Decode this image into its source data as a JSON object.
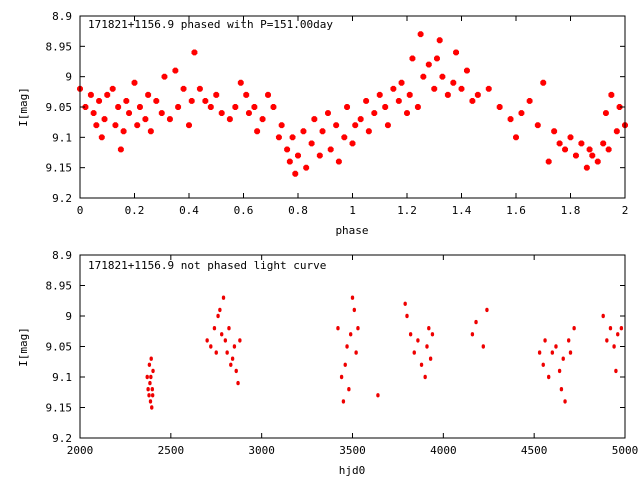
{
  "chart_data": [
    {
      "type": "scatter",
      "title": "171821+1156.9 phased with P=151.00day",
      "xlabel": "phase",
      "ylabel": "I[mag]",
      "xlim": [
        0,
        2
      ],
      "ylim": [
        8.9,
        9.2
      ],
      "y_inverted": true,
      "grid": false,
      "x_ticks": [
        "0",
        "0.2",
        "0.4",
        "0.6",
        "0.8",
        "1",
        "1.2",
        "1.4",
        "1.6",
        "1.8",
        "2"
      ],
      "x_tick_values": [
        0,
        0.2,
        0.4,
        0.6,
        0.8,
        1,
        1.2,
        1.4,
        1.6,
        1.8,
        2
      ],
      "y_ticks": [
        "8.9",
        "8.95",
        "9",
        "9.05",
        "9.1",
        "9.15",
        "9.2"
      ],
      "y_tick_values": [
        8.9,
        8.95,
        9.0,
        9.05,
        9.1,
        9.15,
        9.2
      ],
      "marker_color": "#ff0000",
      "points": [
        [
          0.0,
          9.02
        ],
        [
          0.02,
          9.05
        ],
        [
          0.04,
          9.03
        ],
        [
          0.05,
          9.06
        ],
        [
          0.06,
          9.08
        ],
        [
          0.07,
          9.04
        ],
        [
          0.08,
          9.1
        ],
        [
          0.09,
          9.07
        ],
        [
          0.1,
          9.03
        ],
        [
          0.12,
          9.02
        ],
        [
          0.13,
          9.08
        ],
        [
          0.14,
          9.05
        ],
        [
          0.15,
          9.12
        ],
        [
          0.16,
          9.09
        ],
        [
          0.17,
          9.04
        ],
        [
          0.18,
          9.06
        ],
        [
          0.2,
          9.01
        ],
        [
          0.21,
          9.08
        ],
        [
          0.22,
          9.05
        ],
        [
          0.24,
          9.07
        ],
        [
          0.25,
          9.03
        ],
        [
          0.26,
          9.09
        ],
        [
          0.28,
          9.04
        ],
        [
          0.3,
          9.06
        ],
        [
          0.31,
          9.0
        ],
        [
          0.33,
          9.07
        ],
        [
          0.35,
          8.99
        ],
        [
          0.36,
          9.05
        ],
        [
          0.38,
          9.02
        ],
        [
          0.4,
          9.08
        ],
        [
          0.41,
          9.04
        ],
        [
          0.42,
          8.96
        ],
        [
          0.44,
          9.02
        ],
        [
          0.46,
          9.04
        ],
        [
          0.48,
          9.05
        ],
        [
          0.5,
          9.03
        ],
        [
          0.52,
          9.06
        ],
        [
          0.55,
          9.07
        ],
        [
          0.57,
          9.05
        ],
        [
          0.59,
          9.01
        ],
        [
          0.61,
          9.03
        ],
        [
          0.62,
          9.06
        ],
        [
          0.64,
          9.05
        ],
        [
          0.65,
          9.09
        ],
        [
          0.67,
          9.07
        ],
        [
          0.69,
          9.03
        ],
        [
          0.71,
          9.05
        ],
        [
          0.73,
          9.1
        ],
        [
          0.74,
          9.08
        ],
        [
          0.76,
          9.12
        ],
        [
          0.77,
          9.14
        ],
        [
          0.78,
          9.1
        ],
        [
          0.79,
          9.16
        ],
        [
          0.8,
          9.13
        ],
        [
          0.82,
          9.09
        ],
        [
          0.83,
          9.15
        ],
        [
          0.85,
          9.11
        ],
        [
          0.86,
          9.07
        ],
        [
          0.88,
          9.13
        ],
        [
          0.89,
          9.09
        ],
        [
          0.91,
          9.06
        ],
        [
          0.92,
          9.12
        ],
        [
          0.94,
          9.08
        ],
        [
          0.95,
          9.14
        ],
        [
          0.97,
          9.1
        ],
        [
          0.98,
          9.05
        ],
        [
          1.0,
          9.11
        ],
        [
          1.01,
          9.08
        ],
        [
          1.03,
          9.07
        ],
        [
          1.05,
          9.04
        ],
        [
          1.06,
          9.09
        ],
        [
          1.08,
          9.06
        ],
        [
          1.1,
          9.03
        ],
        [
          1.12,
          9.05
        ],
        [
          1.13,
          9.08
        ],
        [
          1.15,
          9.02
        ],
        [
          1.17,
          9.04
        ],
        [
          1.18,
          9.01
        ],
        [
          1.2,
          9.06
        ],
        [
          1.21,
          9.03
        ],
        [
          1.22,
          8.97
        ],
        [
          1.24,
          9.05
        ],
        [
          1.25,
          8.93
        ],
        [
          1.26,
          9.0
        ],
        [
          1.28,
          8.98
        ],
        [
          1.3,
          9.02
        ],
        [
          1.31,
          8.97
        ],
        [
          1.32,
          8.94
        ],
        [
          1.33,
          9.0
        ],
        [
          1.35,
          9.03
        ],
        [
          1.37,
          9.01
        ],
        [
          1.38,
          8.96
        ],
        [
          1.4,
          9.02
        ],
        [
          1.42,
          8.99
        ],
        [
          1.44,
          9.04
        ],
        [
          1.46,
          9.03
        ],
        [
          1.5,
          9.02
        ],
        [
          1.54,
          9.05
        ],
        [
          1.58,
          9.07
        ],
        [
          1.6,
          9.1
        ],
        [
          1.62,
          9.06
        ],
        [
          1.65,
          9.04
        ],
        [
          1.68,
          9.08
        ],
        [
          1.7,
          9.01
        ],
        [
          1.72,
          9.14
        ],
        [
          1.74,
          9.09
        ],
        [
          1.76,
          9.11
        ],
        [
          1.78,
          9.12
        ],
        [
          1.8,
          9.1
        ],
        [
          1.82,
          9.13
        ],
        [
          1.84,
          9.11
        ],
        [
          1.86,
          9.15
        ],
        [
          1.87,
          9.12
        ],
        [
          1.88,
          9.13
        ],
        [
          1.9,
          9.14
        ],
        [
          1.92,
          9.11
        ],
        [
          1.93,
          9.06
        ],
        [
          1.94,
          9.12
        ],
        [
          1.95,
          9.03
        ],
        [
          1.97,
          9.09
        ],
        [
          1.98,
          9.05
        ],
        [
          2.0,
          9.08
        ]
      ]
    },
    {
      "type": "scatter",
      "title": "171821+1156.9 not phased light curve",
      "xlabel": "hjd0",
      "ylabel": "I[mag]",
      "xlim": [
        2000,
        5000
      ],
      "ylim": [
        8.9,
        9.2
      ],
      "y_inverted": true,
      "grid": false,
      "x_ticks": [
        "2000",
        "2500",
        "3000",
        "3500",
        "4000",
        "4500",
        "5000"
      ],
      "x_tick_values": [
        2000,
        2500,
        3000,
        3500,
        4000,
        4500,
        5000
      ],
      "y_ticks": [
        "8.9",
        "8.95",
        "9",
        "9.05",
        "9.1",
        "9.15",
        "9.2"
      ],
      "y_tick_values": [
        8.9,
        8.95,
        9.0,
        9.05,
        9.1,
        9.15,
        9.2
      ],
      "marker_color": "#ee0000",
      "points": [
        [
          2370,
          9.1
        ],
        [
          2375,
          9.12
        ],
        [
          2380,
          9.13
        ],
        [
          2382,
          9.08
        ],
        [
          2385,
          9.11
        ],
        [
          2388,
          9.14
        ],
        [
          2390,
          9.1
        ],
        [
          2392,
          9.07
        ],
        [
          2395,
          9.15
        ],
        [
          2398,
          9.12
        ],
        [
          2400,
          9.13
        ],
        [
          2402,
          9.09
        ],
        [
          2700,
          9.04
        ],
        [
          2720,
          9.05
        ],
        [
          2740,
          9.02
        ],
        [
          2750,
          9.06
        ],
        [
          2760,
          9.0
        ],
        [
          2770,
          8.99
        ],
        [
          2780,
          9.03
        ],
        [
          2790,
          8.97
        ],
        [
          2800,
          9.04
        ],
        [
          2810,
          9.06
        ],
        [
          2820,
          9.02
        ],
        [
          2830,
          9.08
        ],
        [
          2840,
          9.07
        ],
        [
          2850,
          9.05
        ],
        [
          2860,
          9.09
        ],
        [
          2870,
          9.11
        ],
        [
          2880,
          9.04
        ],
        [
          3420,
          9.02
        ],
        [
          3440,
          9.1
        ],
        [
          3450,
          9.14
        ],
        [
          3460,
          9.08
        ],
        [
          3470,
          9.05
        ],
        [
          3480,
          9.12
        ],
        [
          3490,
          9.03
        ],
        [
          3500,
          8.97
        ],
        [
          3510,
          8.99
        ],
        [
          3520,
          9.06
        ],
        [
          3530,
          9.02
        ],
        [
          3640,
          9.13
        ],
        [
          3790,
          8.98
        ],
        [
          3800,
          9.0
        ],
        [
          3820,
          9.03
        ],
        [
          3840,
          9.06
        ],
        [
          3860,
          9.04
        ],
        [
          3880,
          9.08
        ],
        [
          3900,
          9.1
        ],
        [
          3910,
          9.05
        ],
        [
          3920,
          9.02
        ],
        [
          3930,
          9.07
        ],
        [
          3940,
          9.03
        ],
        [
          4160,
          9.03
        ],
        [
          4180,
          9.01
        ],
        [
          4220,
          9.05
        ],
        [
          4240,
          8.99
        ],
        [
          4530,
          9.06
        ],
        [
          4550,
          9.08
        ],
        [
          4560,
          9.04
        ],
        [
          4580,
          9.1
        ],
        [
          4600,
          9.06
        ],
        [
          4620,
          9.05
        ],
        [
          4640,
          9.09
        ],
        [
          4650,
          9.12
        ],
        [
          4660,
          9.07
        ],
        [
          4670,
          9.14
        ],
        [
          4690,
          9.04
        ],
        [
          4700,
          9.06
        ],
        [
          4720,
          9.02
        ],
        [
          4880,
          9.0
        ],
        [
          4900,
          9.04
        ],
        [
          4920,
          9.02
        ],
        [
          4940,
          9.05
        ],
        [
          4950,
          9.09
        ],
        [
          4960,
          9.03
        ],
        [
          4980,
          9.02
        ]
      ]
    }
  ]
}
